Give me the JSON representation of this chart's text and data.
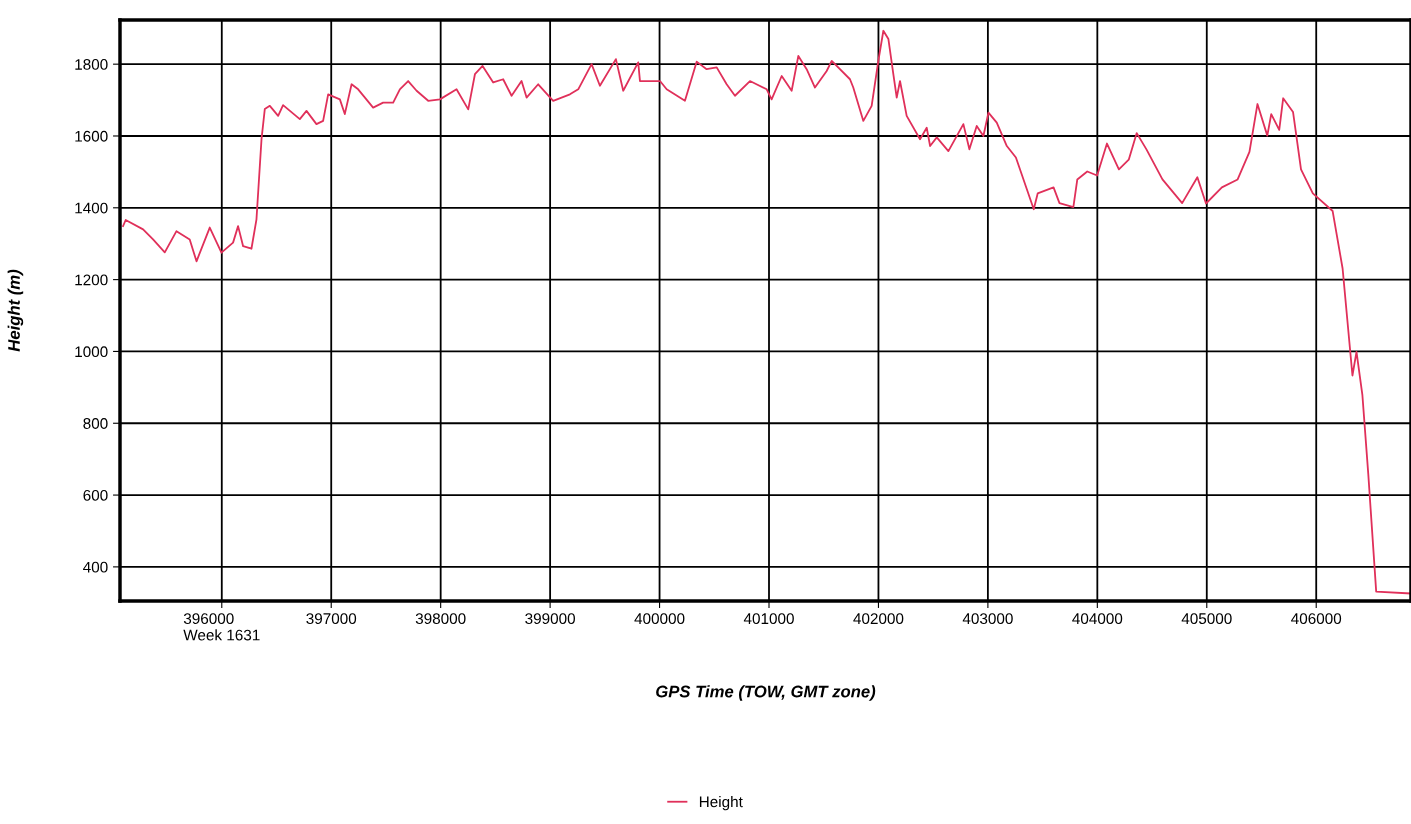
{
  "chart_data": {
    "type": "line",
    "xlabel": "GPS Time (TOW, GMT zone)",
    "ylabel": "Height (m)",
    "xlim": [
      395070,
      406866
    ],
    "ylim": [
      305,
      1923
    ],
    "xticks": [
      {
        "value": 396000,
        "label": "396000\nWeek 1631"
      },
      397000,
      398000,
      399000,
      400000,
      401000,
      402000,
      403000,
      404000,
      405000,
      406000
    ],
    "yticks": [
      400,
      600,
      800,
      1000,
      1200,
      1400,
      1600,
      1800
    ],
    "grid": true,
    "legend": "bottom",
    "marker": "none",
    "line_style": "solid",
    "series": [
      {
        "name": "Height",
        "color": "#e0305a",
        "x": [
          395098,
          395122,
          395281,
          395372,
          395479,
          395586,
          395707,
          395769,
          395890,
          395997,
          396103,
          396149,
          396195,
          396271,
          396317,
          396363,
          396393,
          396439,
          396515,
          396560,
          396713,
          396774,
          396865,
          396926,
          396972,
          397079,
          397124,
          397186,
          397246,
          397383,
          397474,
          397566,
          397627,
          397703,
          397780,
          397886,
          397993,
          398145,
          398252,
          398313,
          398383,
          398480,
          398571,
          398648,
          398739,
          398785,
          398891,
          399028,
          399181,
          399257,
          399379,
          399455,
          399601,
          399668,
          399805,
          399821,
          400004,
          400065,
          400232,
          400339,
          400430,
          400522,
          400613,
          400689,
          400826,
          400979,
          401024,
          401116,
          401207,
          401268,
          401344,
          401420,
          401527,
          401573,
          401740,
          401770,
          401862,
          401938,
          401999,
          402045,
          402091,
          402136,
          402167,
          402197,
          402258,
          402380,
          402441,
          402472,
          402533,
          402639,
          402776,
          402831,
          402898,
          402959,
          403005,
          403081,
          403173,
          403256,
          403419,
          403455,
          403600,
          403654,
          403781,
          403817,
          403908,
          403998,
          404088,
          404197,
          404287,
          404360,
          404450,
          404595,
          404775,
          404914,
          404993,
          405138,
          405282,
          405390,
          405463,
          405553,
          405589,
          405662,
          405698,
          405788,
          405861,
          405969,
          406150,
          406241,
          406331,
          406368,
          406422,
          406476,
          406548,
          406860
        ],
        "values": [
          1349,
          1366,
          1340,
          1312,
          1276,
          1335,
          1312,
          1251,
          1345,
          1275,
          1303,
          1349,
          1293,
          1286,
          1368,
          1591,
          1675,
          1684,
          1656,
          1686,
          1647,
          1670,
          1633,
          1642,
          1716,
          1702,
          1661,
          1744,
          1730,
          1679,
          1693,
          1693,
          1730,
          1753,
          1726,
          1698,
          1702,
          1730,
          1674,
          1772,
          1795,
          1749,
          1758,
          1712,
          1753,
          1707,
          1744,
          1698,
          1716,
          1730,
          1800,
          1740,
          1814,
          1726,
          1805,
          1753,
          1753,
          1730,
          1698,
          1807,
          1786,
          1791,
          1744,
          1712,
          1753,
          1730,
          1702,
          1767,
          1726,
          1823,
          1786,
          1735,
          1781,
          1809,
          1758,
          1735,
          1642,
          1684,
          1809,
          1893,
          1870,
          1772,
          1707,
          1753,
          1656,
          1591,
          1623,
          1572,
          1596,
          1558,
          1633,
          1563,
          1628,
          1600,
          1665,
          1637,
          1572,
          1540,
          1396,
          1440,
          1457,
          1413,
          1402,
          1479,
          1501,
          1490,
          1579,
          1507,
          1534,
          1608,
          1562,
          1479,
          1413,
          1485,
          1412,
          1457,
          1479,
          1556,
          1689,
          1601,
          1661,
          1617,
          1705,
          1667,
          1507,
          1440,
          1391,
          1231,
          933,
          999,
          878,
          657,
          331,
          326
        ]
      }
    ]
  }
}
